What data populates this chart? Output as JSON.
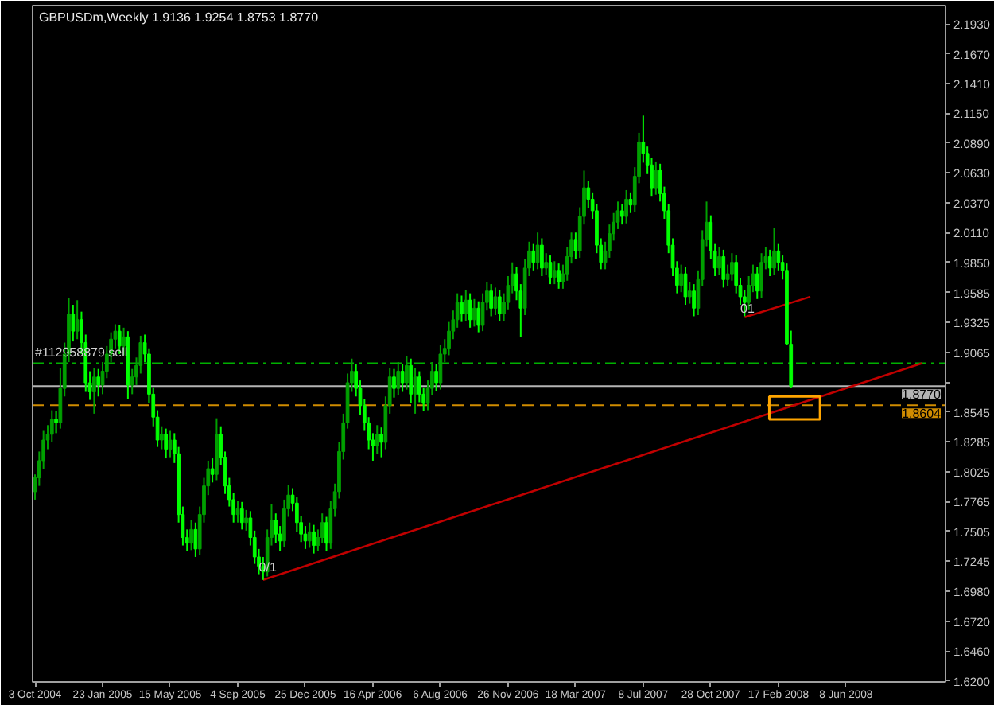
{
  "chart_data": {
    "type": "candlestick",
    "title": "GBPUSDm,Weekly  1.9136 1.9254 1.8753 1.8770",
    "x": [
      "2004-10-03",
      "2004-10-10",
      "2004-10-17",
      "2004-10-24",
      "2004-10-31",
      "2004-11-07",
      "2004-11-14",
      "2004-11-21",
      "2004-11-28",
      "2004-12-05",
      "2004-12-12",
      "2004-12-19",
      "2004-12-26",
      "2005-01-02",
      "2005-01-09",
      "2005-01-16",
      "2005-01-23",
      "2005-01-30",
      "2005-02-06",
      "2005-02-13",
      "2005-02-20",
      "2005-02-27",
      "2005-03-06",
      "2005-03-13",
      "2005-03-20",
      "2005-03-27",
      "2005-04-03",
      "2005-04-10",
      "2005-04-17",
      "2005-04-24",
      "2005-05-01",
      "2005-05-08",
      "2005-05-15",
      "2005-05-22",
      "2005-05-29",
      "2005-06-05",
      "2005-06-12",
      "2005-06-19",
      "2005-06-26",
      "2005-07-03",
      "2005-07-10",
      "2005-07-17",
      "2005-07-24",
      "2005-07-31",
      "2005-08-07",
      "2005-08-14",
      "2005-08-21",
      "2005-08-28",
      "2005-09-04",
      "2005-09-11",
      "2005-09-18",
      "2005-09-25",
      "2005-10-02",
      "2005-10-09",
      "2005-10-16",
      "2005-10-23",
      "2005-10-30",
      "2005-11-06",
      "2005-11-13",
      "2005-11-20",
      "2005-11-27",
      "2005-12-04",
      "2005-12-11",
      "2005-12-18",
      "2005-12-25",
      "2006-01-01",
      "2006-01-08",
      "2006-01-15",
      "2006-01-22",
      "2006-01-29",
      "2006-02-05",
      "2006-02-12",
      "2006-02-19",
      "2006-02-26",
      "2006-03-05",
      "2006-03-12",
      "2006-03-19",
      "2006-03-26",
      "2006-04-02",
      "2006-04-09",
      "2006-04-16",
      "2006-04-23",
      "2006-04-30",
      "2006-05-07",
      "2006-05-14",
      "2006-05-21",
      "2006-05-28",
      "2006-06-04",
      "2006-06-11",
      "2006-06-18",
      "2006-06-25",
      "2006-07-02",
      "2006-07-09",
      "2006-07-16",
      "2006-07-23",
      "2006-07-30",
      "2006-08-06",
      "2006-08-13",
      "2006-08-20",
      "2006-08-27",
      "2006-09-03",
      "2006-09-10",
      "2006-09-17",
      "2006-09-24",
      "2006-10-01",
      "2006-10-08",
      "2006-10-15",
      "2006-10-22",
      "2006-10-29",
      "2006-11-05",
      "2006-11-12",
      "2006-11-19",
      "2006-11-26",
      "2006-12-03",
      "2006-12-10",
      "2006-12-17",
      "2006-12-24",
      "2006-12-31",
      "2007-01-07",
      "2007-01-14",
      "2007-01-21",
      "2007-01-28",
      "2007-02-04",
      "2007-02-11",
      "2007-02-18",
      "2007-02-25",
      "2007-03-04",
      "2007-03-11",
      "2007-03-18",
      "2007-03-25",
      "2007-04-01",
      "2007-04-08",
      "2007-04-15",
      "2007-04-22",
      "2007-04-29",
      "2007-05-06",
      "2007-05-13",
      "2007-05-20",
      "2007-05-27",
      "2007-06-03",
      "2007-06-10",
      "2007-06-17",
      "2007-06-24",
      "2007-07-01",
      "2007-07-08",
      "2007-07-15",
      "2007-07-22",
      "2007-07-29",
      "2007-08-05",
      "2007-08-12",
      "2007-08-19",
      "2007-08-26",
      "2007-09-02",
      "2007-09-09",
      "2007-09-16",
      "2007-09-23",
      "2007-09-30",
      "2007-10-07",
      "2007-10-14",
      "2007-10-21",
      "2007-10-28",
      "2007-11-04",
      "2007-11-11",
      "2007-11-18",
      "2007-11-25",
      "2007-12-02",
      "2007-12-09",
      "2007-12-16",
      "2007-12-23",
      "2007-12-30",
      "2008-01-06",
      "2008-01-13",
      "2008-01-20",
      "2008-01-27",
      "2008-02-03",
      "2008-02-10",
      "2008-02-17",
      "2008-02-24",
      "2008-03-02",
      "2008-03-09"
    ],
    "ohlc": [
      [
        1.785,
        1.8,
        1.778,
        1.797
      ],
      [
        1.797,
        1.82,
        1.79,
        1.812
      ],
      [
        1.812,
        1.838,
        1.805,
        1.83
      ],
      [
        1.83,
        1.843,
        1.822,
        1.835
      ],
      [
        1.835,
        1.856,
        1.828,
        1.848
      ],
      [
        1.848,
        1.855,
        1.836,
        1.845
      ],
      [
        1.845,
        1.893,
        1.84,
        1.875
      ],
      [
        1.875,
        1.915,
        1.868,
        1.905
      ],
      [
        1.905,
        1.954,
        1.898,
        1.94
      ],
      [
        1.94,
        1.948,
        1.916,
        1.925
      ],
      [
        1.925,
        1.952,
        1.918,
        1.935
      ],
      [
        1.935,
        1.942,
        1.905,
        1.915
      ],
      [
        1.915,
        1.922,
        1.872,
        1.88
      ],
      [
        1.88,
        1.89,
        1.865,
        1.872
      ],
      [
        1.872,
        1.893,
        1.853,
        1.885
      ],
      [
        1.885,
        1.892,
        1.868,
        1.878
      ],
      [
        1.878,
        1.898,
        1.87,
        1.89
      ],
      [
        1.89,
        1.912,
        1.884,
        1.905
      ],
      [
        1.905,
        1.924,
        1.898,
        1.918
      ],
      [
        1.918,
        1.931,
        1.91,
        1.925
      ],
      [
        1.925,
        1.93,
        1.905,
        1.912
      ],
      [
        1.912,
        1.928,
        1.904,
        1.92
      ],
      [
        1.92,
        1.925,
        1.866,
        1.878
      ],
      [
        1.878,
        1.892,
        1.87,
        1.885
      ],
      [
        1.885,
        1.902,
        1.878,
        1.895
      ],
      [
        1.895,
        1.921,
        1.888,
        1.915
      ],
      [
        1.915,
        1.922,
        1.898,
        1.905
      ],
      [
        1.905,
        1.91,
        1.862,
        1.87
      ],
      [
        1.87,
        1.876,
        1.842,
        1.85
      ],
      [
        1.85,
        1.856,
        1.824,
        1.83
      ],
      [
        1.83,
        1.842,
        1.822,
        1.835
      ],
      [
        1.835,
        1.84,
        1.814,
        1.822
      ],
      [
        1.822,
        1.838,
        1.815,
        1.83
      ],
      [
        1.83,
        1.836,
        1.81,
        1.818
      ],
      [
        1.818,
        1.824,
        1.758,
        1.765
      ],
      [
        1.765,
        1.772,
        1.738,
        1.745
      ],
      [
        1.745,
        1.752,
        1.733,
        1.74
      ],
      [
        1.74,
        1.76,
        1.734,
        1.752
      ],
      [
        1.752,
        1.758,
        1.728,
        1.735
      ],
      [
        1.735,
        1.772,
        1.73,
        1.765
      ],
      [
        1.765,
        1.797,
        1.758,
        1.79
      ],
      [
        1.79,
        1.812,
        1.782,
        1.805
      ],
      [
        1.805,
        1.814,
        1.793,
        1.8
      ],
      [
        1.8,
        1.849,
        1.795,
        1.835
      ],
      [
        1.835,
        1.842,
        1.808,
        1.815
      ],
      [
        1.815,
        1.82,
        1.783,
        1.79
      ],
      [
        1.79,
        1.797,
        1.772,
        1.778
      ],
      [
        1.778,
        1.784,
        1.758,
        1.765
      ],
      [
        1.765,
        1.777,
        1.758,
        1.77
      ],
      [
        1.77,
        1.776,
        1.752,
        1.758
      ],
      [
        1.758,
        1.769,
        1.751,
        1.762
      ],
      [
        1.762,
        1.768,
        1.738,
        1.745
      ],
      [
        1.745,
        1.751,
        1.722,
        1.728
      ],
      [
        1.728,
        1.735,
        1.713,
        1.72
      ],
      [
        1.72,
        1.728,
        1.708,
        1.715
      ],
      [
        1.715,
        1.752,
        1.711,
        1.745
      ],
      [
        1.745,
        1.774,
        1.738,
        1.76
      ],
      [
        1.76,
        1.766,
        1.74,
        1.748
      ],
      [
        1.748,
        1.755,
        1.733,
        1.742
      ],
      [
        1.742,
        1.778,
        1.737,
        1.77
      ],
      [
        1.77,
        1.791,
        1.763,
        1.782
      ],
      [
        1.782,
        1.788,
        1.768,
        1.775
      ],
      [
        1.775,
        1.78,
        1.75,
        1.758
      ],
      [
        1.758,
        1.764,
        1.741,
        1.748
      ],
      [
        1.748,
        1.755,
        1.735,
        1.742
      ],
      [
        1.742,
        1.758,
        1.736,
        1.75
      ],
      [
        1.75,
        1.756,
        1.731,
        1.738
      ],
      [
        1.738,
        1.752,
        1.733,
        1.745
      ],
      [
        1.745,
        1.766,
        1.74,
        1.758
      ],
      [
        1.758,
        1.763,
        1.733,
        1.74
      ],
      [
        1.74,
        1.777,
        1.735,
        1.77
      ],
      [
        1.77,
        1.792,
        1.763,
        1.785
      ],
      [
        1.785,
        1.828,
        1.779,
        1.82
      ],
      [
        1.82,
        1.853,
        1.813,
        1.845
      ],
      [
        1.845,
        1.888,
        1.84,
        1.88
      ],
      [
        1.88,
        1.901,
        1.872,
        1.89
      ],
      [
        1.89,
        1.896,
        1.868,
        1.875
      ],
      [
        1.875,
        1.882,
        1.852,
        1.86
      ],
      [
        1.86,
        1.866,
        1.838,
        1.845
      ],
      [
        1.845,
        1.85,
        1.822,
        1.83
      ],
      [
        1.83,
        1.836,
        1.812,
        1.825
      ],
      [
        1.825,
        1.843,
        1.818,
        1.835
      ],
      [
        1.835,
        1.841,
        1.815,
        1.828
      ],
      [
        1.828,
        1.868,
        1.822,
        1.86
      ],
      [
        1.86,
        1.893,
        1.853,
        1.885
      ],
      [
        1.885,
        1.892,
        1.867,
        1.875
      ],
      [
        1.875,
        1.898,
        1.869,
        1.89
      ],
      [
        1.89,
        1.896,
        1.872,
        1.88
      ],
      [
        1.88,
        1.903,
        1.874,
        1.895
      ],
      [
        1.895,
        1.901,
        1.862,
        1.87
      ],
      [
        1.87,
        1.893,
        1.853,
        1.885
      ],
      [
        1.885,
        1.89,
        1.863,
        1.87
      ],
      [
        1.87,
        1.876,
        1.855,
        1.862
      ],
      [
        1.862,
        1.882,
        1.856,
        1.875
      ],
      [
        1.875,
        1.898,
        1.869,
        1.89
      ],
      [
        1.89,
        1.896,
        1.873,
        1.88
      ],
      [
        1.88,
        1.913,
        1.874,
        1.905
      ],
      [
        1.905,
        1.918,
        1.898,
        1.91
      ],
      [
        1.91,
        1.933,
        1.904,
        1.925
      ],
      [
        1.925,
        1.943,
        1.918,
        1.935
      ],
      [
        1.935,
        1.958,
        1.928,
        1.95
      ],
      [
        1.95,
        1.956,
        1.933,
        1.94
      ],
      [
        1.94,
        1.961,
        1.934,
        1.952
      ],
      [
        1.952,
        1.958,
        1.928,
        1.935
      ],
      [
        1.935,
        1.953,
        1.929,
        1.945
      ],
      [
        1.945,
        1.951,
        1.924,
        1.93
      ],
      [
        1.93,
        1.958,
        1.925,
        1.95
      ],
      [
        1.95,
        1.968,
        1.943,
        1.96
      ],
      [
        1.96,
        1.966,
        1.938,
        1.945
      ],
      [
        1.945,
        1.963,
        1.939,
        1.955
      ],
      [
        1.955,
        1.961,
        1.934,
        1.94
      ],
      [
        1.94,
        1.958,
        1.934,
        1.95
      ],
      [
        1.95,
        1.973,
        1.944,
        1.965
      ],
      [
        1.965,
        1.985,
        1.958,
        1.975
      ],
      [
        1.975,
        1.981,
        1.952,
        1.96
      ],
      [
        1.96,
        1.966,
        1.92,
        1.945
      ],
      [
        1.945,
        1.988,
        1.939,
        1.98
      ],
      [
        1.98,
        2.003,
        1.973,
        1.995
      ],
      [
        1.995,
        2.001,
        1.978,
        1.985
      ],
      [
        1.985,
        2.011,
        1.979,
        2.0
      ],
      [
        2.0,
        2.006,
        1.973,
        1.98
      ],
      [
        1.98,
        1.993,
        1.974,
        1.985
      ],
      [
        1.985,
        1.991,
        1.966,
        1.972
      ],
      [
        1.972,
        1.986,
        1.966,
        1.978
      ],
      [
        1.978,
        1.984,
        1.962,
        1.968
      ],
      [
        1.968,
        1.983,
        1.962,
        1.975
      ],
      [
        1.975,
        1.998,
        1.969,
        1.99
      ],
      [
        1.99,
        2.011,
        1.984,
        2.005
      ],
      [
        2.005,
        2.011,
        1.988,
        1.995
      ],
      [
        1.995,
        2.033,
        1.989,
        2.025
      ],
      [
        2.025,
        2.065,
        2.018,
        2.05
      ],
      [
        2.05,
        2.056,
        2.032,
        2.04
      ],
      [
        2.04,
        2.046,
        2.023,
        2.03
      ],
      [
        2.03,
        2.036,
        1.993,
        2.0
      ],
      [
        2.0,
        2.006,
        1.979,
        1.985
      ],
      [
        1.985,
        2.003,
        1.979,
        1.995
      ],
      [
        1.995,
        2.018,
        1.989,
        2.01
      ],
      [
        2.01,
        2.028,
        2.004,
        2.02
      ],
      [
        2.02,
        2.038,
        2.014,
        2.03
      ],
      [
        2.03,
        2.036,
        2.018,
        2.025
      ],
      [
        2.025,
        2.048,
        2.019,
        2.04
      ],
      [
        2.04,
        2.046,
        2.028,
        2.035
      ],
      [
        2.035,
        2.068,
        2.029,
        2.06
      ],
      [
        2.06,
        2.098,
        2.054,
        2.09
      ],
      [
        2.09,
        2.113,
        2.072,
        2.08
      ],
      [
        2.08,
        2.086,
        2.062,
        2.07
      ],
      [
        2.07,
        2.076,
        2.043,
        2.05
      ],
      [
        2.05,
        2.073,
        2.044,
        2.065
      ],
      [
        2.065,
        2.071,
        2.038,
        2.045
      ],
      [
        2.045,
        2.051,
        2.023,
        2.03
      ],
      [
        2.03,
        2.036,
        1.993,
        2.0
      ],
      [
        2.0,
        2.006,
        1.973,
        1.98
      ],
      [
        1.98,
        1.986,
        1.958,
        1.965
      ],
      [
        1.965,
        1.983,
        1.959,
        1.975
      ],
      [
        1.975,
        1.981,
        1.948,
        1.955
      ],
      [
        1.955,
        1.968,
        1.949,
        1.96
      ],
      [
        1.96,
        1.966,
        1.938,
        1.945
      ],
      [
        1.945,
        1.978,
        1.939,
        1.97
      ],
      [
        1.97,
        2.013,
        1.964,
        2.005
      ],
      [
        2.005,
        2.038,
        1.999,
        2.02
      ],
      [
        2.02,
        2.026,
        1.988,
        1.995
      ],
      [
        1.995,
        2.001,
        1.973,
        1.98
      ],
      [
        1.98,
        1.998,
        1.974,
        1.99
      ],
      [
        1.99,
        1.996,
        1.963,
        1.97
      ],
      [
        1.97,
        1.983,
        1.964,
        1.975
      ],
      [
        1.975,
        1.993,
        1.969,
        1.985
      ],
      [
        1.985,
        1.991,
        1.958,
        1.965
      ],
      [
        1.965,
        1.971,
        1.948,
        1.955
      ],
      [
        1.955,
        1.961,
        1.938,
        1.95
      ],
      [
        1.95,
        1.973,
        1.944,
        1.965
      ],
      [
        1.965,
        1.983,
        1.959,
        1.975
      ],
      [
        1.975,
        1.981,
        1.953,
        1.96
      ],
      [
        1.96,
        1.993,
        1.954,
        1.985
      ],
      [
        1.985,
        1.998,
        1.979,
        1.99
      ],
      [
        1.99,
        1.996,
        1.973,
        1.98
      ],
      [
        1.98,
        2.015,
        1.974,
        1.995
      ],
      [
        1.995,
        2.001,
        1.978,
        1.985
      ],
      [
        1.985,
        1.991,
        1.97,
        1.978
      ],
      [
        1.978,
        1.984,
        1.913,
        1.914
      ],
      [
        1.9136,
        1.9254,
        1.8753,
        1.877
      ]
    ],
    "colors": [
      "#00a000",
      "#00a000",
      "#00a000",
      "#00a000",
      "#00a000",
      "#00ff00",
      "#00a000",
      "#00a000",
      "#00a000",
      "#00ff00",
      "#00a000",
      "#00ff00",
      "#00ff00",
      "#00ff00",
      "#00a000",
      "#00ff00",
      "#00a000",
      "#00a000",
      "#00a000",
      "#00a000",
      "#00ff00",
      "#00a000",
      "#00ff00",
      "#00a000",
      "#00a000",
      "#00a000",
      "#00ff00",
      "#00ff00",
      "#00ff00",
      "#00ff00",
      "#00a000",
      "#00ff00",
      "#00a000",
      "#00ff00",
      "#00ff00",
      "#00ff00",
      "#00ff00",
      "#00a000",
      "#00ff00",
      "#00a000",
      "#00a000",
      "#00a000",
      "#00ff00",
      "#00a000",
      "#00ff00",
      "#00ff00",
      "#00ff00",
      "#00ff00",
      "#00a000",
      "#00ff00",
      "#00a000",
      "#00ff00",
      "#00ff00",
      "#00ff00",
      "#00ff00",
      "#00a000",
      "#00a000",
      "#00ff00",
      "#00ff00",
      "#00a000",
      "#00a000",
      "#00ff00",
      "#00ff00",
      "#00ff00",
      "#00ff00",
      "#00a000",
      "#00ff00",
      "#00a000",
      "#00a000",
      "#00ff00",
      "#00a000",
      "#00a000",
      "#00a000",
      "#00a000",
      "#00a000",
      "#00a000",
      "#00ff00",
      "#00ff00",
      "#00ff00",
      "#00ff00",
      "#00ff00",
      "#00a000",
      "#00ff00",
      "#00a000",
      "#00a000",
      "#00ff00",
      "#00a000",
      "#00ff00",
      "#00a000",
      "#00ff00",
      "#00a000",
      "#00ff00",
      "#00ff00",
      "#00a000",
      "#00a000",
      "#00ff00",
      "#00a000",
      "#00a000",
      "#00a000",
      "#00a000",
      "#00a000",
      "#00ff00",
      "#00a000",
      "#00ff00",
      "#00a000",
      "#00ff00",
      "#00a000",
      "#00a000",
      "#00ff00",
      "#00a000",
      "#00ff00",
      "#00a000",
      "#00a000",
      "#00a000",
      "#00ff00",
      "#00ff00",
      "#00a000",
      "#00a000",
      "#00ff00",
      "#00a000",
      "#00ff00",
      "#00a000",
      "#00ff00",
      "#00a000",
      "#00ff00",
      "#00a000",
      "#00a000",
      "#00a000",
      "#00ff00",
      "#00a000",
      "#00a000",
      "#00ff00",
      "#00ff00",
      "#00ff00",
      "#00ff00",
      "#00a000",
      "#00a000",
      "#00a000",
      "#00a000",
      "#00ff00",
      "#00a000",
      "#00ff00",
      "#00a000",
      "#00a000",
      "#00ff00",
      "#00ff00",
      "#00ff00",
      "#00a000",
      "#00ff00",
      "#00ff00",
      "#00ff00",
      "#00ff00",
      "#00ff00",
      "#00a000",
      "#00ff00",
      "#00a000",
      "#00ff00",
      "#00a000",
      "#00a000",
      "#00a000",
      "#00ff00",
      "#00ff00",
      "#00a000",
      "#00ff00",
      "#00a000",
      "#00a000",
      "#00ff00",
      "#00ff00",
      "#00ff00",
      "#00a000",
      "#00a000",
      "#00ff00",
      "#00a000",
      "#00a000",
      "#00ff00",
      "#00a000",
      "#00ff00",
      "#00ff00",
      "#00ff00",
      "#00ff00"
    ],
    "series": [
      {
        "type": "line",
        "color": "#c00000",
        "x": [
          "2005-10-16",
          "2008-10-12"
        ],
        "values": [
          1.708,
          1.897
        ]
      },
      {
        "type": "line",
        "color": "#c00000",
        "x": [
          "2007-12-23",
          "2008-04-10"
        ],
        "values": [
          1.937,
          1.955
        ]
      },
      {
        "type": "bar",
        "color": "#ffa500",
        "x": [
          "2008-03-15"
        ],
        "base": [
          1.848
        ],
        "values": [
          0.02
        ]
      }
    ],
    "ref_lines": [
      {
        "axis": "y",
        "value": 1.897,
        "color": "#00b000",
        "line_style": "dashdot"
      },
      {
        "axis": "y",
        "value": 1.877,
        "label": "1.8770",
        "color": "#b4b4b4",
        "line_style": "solid"
      },
      {
        "axis": "y",
        "value": 1.8604,
        "label": "1.8604",
        "color": "#d08c00",
        "line_style": "dashed"
      }
    ],
    "annotations": [
      {
        "text": "#112958879 sell",
        "x": "2004-10-03",
        "y": 1.897
      },
      {
        "text": "0/1",
        "x": "2005-10-09",
        "y": 1.71
      },
      {
        "text": "01",
        "x": "2007-12-16",
        "y": 1.938
      }
    ],
    "xlim": [
      "2004-09-29",
      "2008-11-20"
    ],
    "xticks": [
      {
        "value": "2004-10-03",
        "label": "3 Oct 2004"
      },
      {
        "value": "2005-01-23",
        "label": "23 Jan 2005"
      },
      {
        "value": "2005-05-15",
        "label": "15 May 2005"
      },
      {
        "value": "2005-09-04",
        "label": "4 Sep 2005"
      },
      {
        "value": "2005-12-25",
        "label": "25 Dec 2005"
      },
      {
        "value": "2006-04-16",
        "label": "16 Apr 2006"
      },
      {
        "value": "2006-08-06",
        "label": "6 Aug 2006"
      },
      {
        "value": "2006-11-26",
        "label": "26 Nov 2006"
      },
      {
        "value": "2007-03-18",
        "label": "18 Mar 2007"
      },
      {
        "value": "2007-07-08",
        "label": "8 Jul 2007"
      },
      {
        "value": "2007-10-28",
        "label": "28 Oct 2007"
      },
      {
        "value": "2008-02-17",
        "label": "17 Feb 2008"
      },
      {
        "value": "2008-06-08",
        "label": "8 Jun 2008"
      }
    ],
    "ylim": [
      1.619,
      2.209
    ],
    "yticks": [
      {
        "value": 2.193,
        "label": "2.1930"
      },
      {
        "value": 2.167,
        "label": "2.1670"
      },
      {
        "value": 2.141,
        "label": "2.1410"
      },
      {
        "value": 2.115,
        "label": "2.1150"
      },
      {
        "value": 2.089,
        "label": "2.0890"
      },
      {
        "value": 2.063,
        "label": "2.0630"
      },
      {
        "value": 2.037,
        "label": "2.0370"
      },
      {
        "value": 2.011,
        "label": "2.0110"
      },
      {
        "value": 1.985,
        "label": "1.9850"
      },
      1.9585,
      1.9325,
      1.9065,
      {
        "value": 1.8805,
        "label": null
      },
      1.8545,
      1.8285,
      1.8025,
      1.7765,
      1.7505,
      1.7245,
      {
        "value": 1.698,
        "label": "1.6980"
      },
      {
        "value": 1.672,
        "label": "1.6720"
      },
      {
        "value": 1.646,
        "label": "1.6460"
      },
      {
        "value": 1.62,
        "label": "1.6200"
      }
    ]
  }
}
